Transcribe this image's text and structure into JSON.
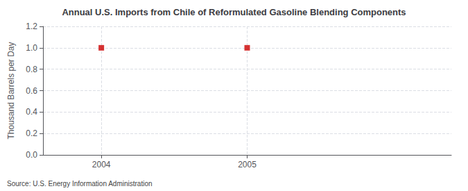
{
  "chart_data": {
    "type": "scatter",
    "title": "Annual U.S. Imports from Chile of Reformulated Gasoline Blending Components",
    "ylabel": "Thousand Barrels per Day",
    "annotation": "Source: U.S. Energy Information Administration",
    "x": [
      2004,
      2005
    ],
    "values": [
      1.0,
      1.0
    ],
    "color": "#cc0000",
    "marker": "square",
    "xlim": [
      2003.6,
      2006.4
    ],
    "xticks": [
      2004,
      2005
    ],
    "ylim": [
      0.0,
      1.2
    ],
    "yticks": [
      {
        "value": 0.0,
        "label": "0.0"
      },
      0.2,
      0.4,
      0.6,
      0.8,
      {
        "value": 1.0,
        "label": "1.0"
      },
      1.2
    ],
    "grid": true
  }
}
